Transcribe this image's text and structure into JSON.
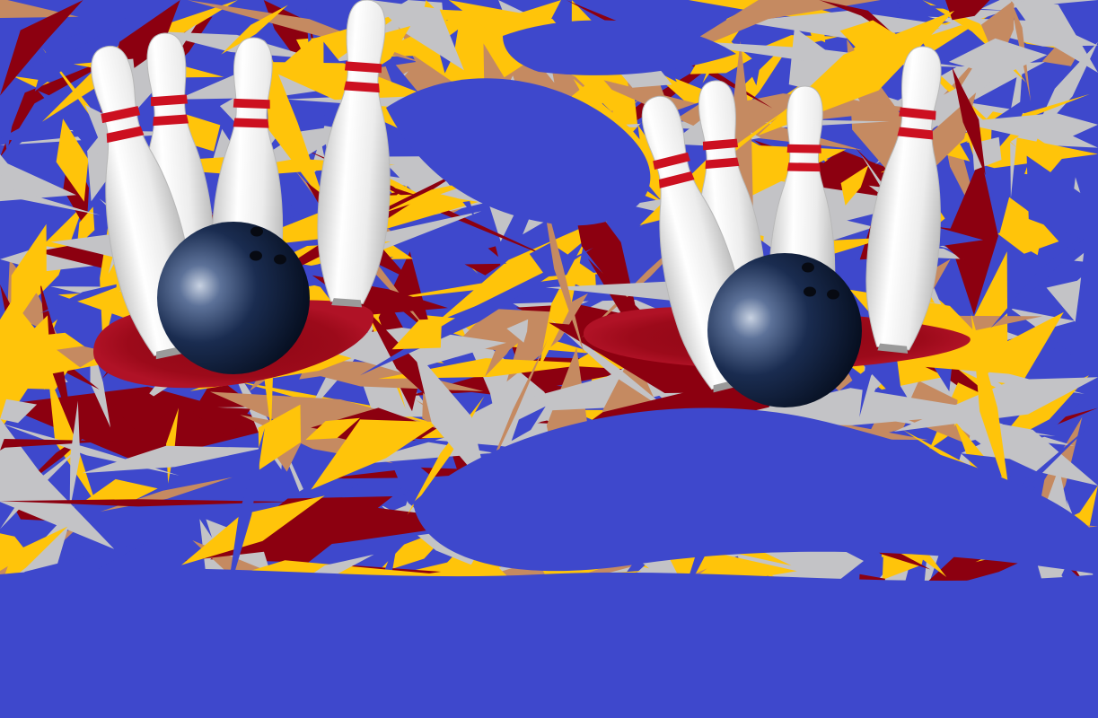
{
  "scene": {
    "pin_groups": 2,
    "pins_per_group": 4,
    "balls": 2
  },
  "colors": {
    "background_blue": "#3e48cc",
    "pattern_yellow": "#ffc40a",
    "pattern_gray": "#c3c3c6",
    "pattern_red": "#8c0010",
    "pattern_tan": "#c58a61",
    "pin_white": "#f4f4f4",
    "pin_stripe": "#cc1020",
    "ball_dark": "#061328",
    "ball_highlight": "#c8d2e2",
    "shadow_red": "#8e0615"
  },
  "icons": {
    "pin": "bowling-pin-icon",
    "ball": "bowling-ball-icon"
  }
}
